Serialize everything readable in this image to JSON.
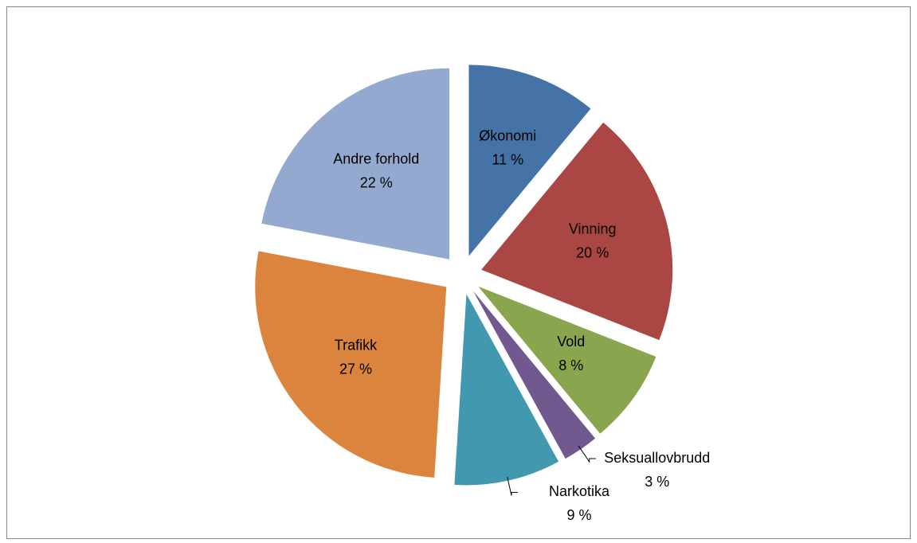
{
  "chart_data": {
    "type": "pie",
    "categories": [
      "Økonomi",
      "Vinning",
      "Vold",
      "Seksuallovbrudd",
      "Narkotika",
      "Trafikk",
      "Andre forhold"
    ],
    "values": [
      11,
      20,
      8,
      3,
      9,
      27,
      22
    ],
    "value_labels": [
      "11 %",
      "20 %",
      "8 %",
      "3 %",
      "9 %",
      "27 %",
      "22 %"
    ],
    "colors": [
      "#4572a7",
      "#aa4643",
      "#89a54e",
      "#71588f",
      "#4198af",
      "#db843d",
      "#93a9cf"
    ]
  }
}
